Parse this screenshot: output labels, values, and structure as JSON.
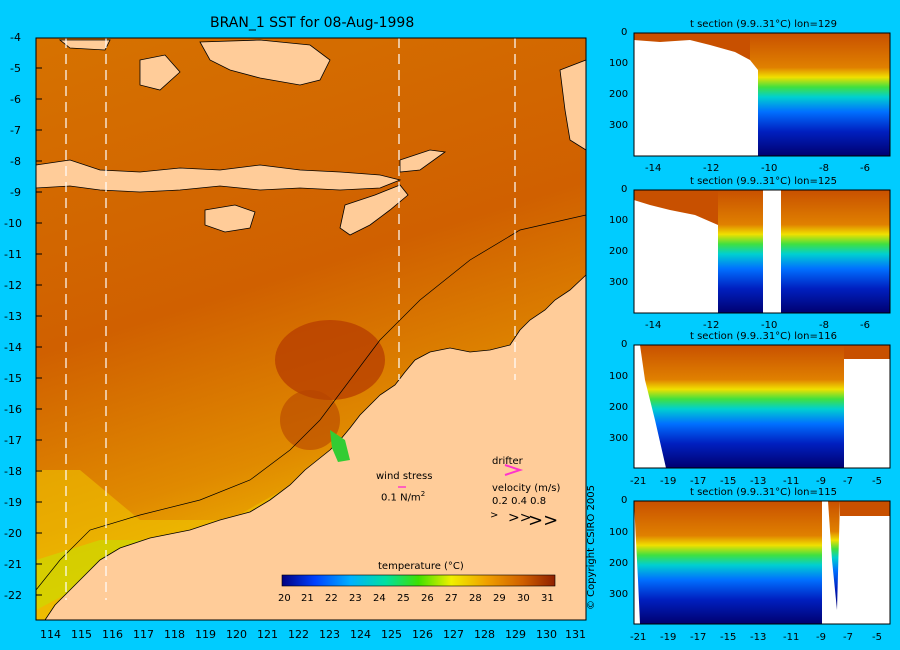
{
  "main_map": {
    "title": "BRAN_1 SST for 08-Aug-1998",
    "lat_ticks": [
      "-4",
      "-5",
      "-6",
      "-7",
      "-8",
      "-9",
      "-10",
      "-11",
      "-12",
      "-13",
      "-14",
      "-15",
      "-16",
      "-17",
      "-18",
      "-19",
      "-20",
      "-21",
      "-22"
    ],
    "lon_ticks": [
      "114",
      "115",
      "116",
      "117",
      "118",
      "119",
      "120",
      "121",
      "122",
      "123",
      "124",
      "125",
      "126",
      "127",
      "128",
      "129",
      "130",
      "131"
    ],
    "annotations": {
      "wind_stress_label": "wind stress",
      "wind_stress_scale": "0.1 N/m",
      "wind_stress_scale_sup": "2",
      "drifter_label": "drifter",
      "velocity_label": "velocity (m/s)",
      "velocity_scale": "0.2 0.4 0.8"
    },
    "colorbar": {
      "title": "temperature (°C)",
      "ticks": [
        "20",
        "21",
        "22",
        "23",
        "24",
        "25",
        "26",
        "27",
        "28",
        "29",
        "30",
        "31"
      ]
    },
    "colors": {
      "background": "#00ccff",
      "land": "#ffcc99",
      "warm": "#d26a00",
      "hot": "#b33300",
      "cool": "#f0b000",
      "drifter": "#ff33cc"
    }
  },
  "copyright": "© Copyright CSIRO 2005",
  "sections": [
    {
      "title": "t section (9.9..31°C) lon=129",
      "y_ticks": [
        "0",
        "100",
        "200",
        "300"
      ],
      "x_ticks": [
        "-14",
        "-12",
        "-10",
        "-8",
        "-6"
      ]
    },
    {
      "title": "t section (9.9..31°C) lon=125",
      "y_ticks": [
        "0",
        "100",
        "200",
        "300"
      ],
      "x_ticks": [
        "-14",
        "-12",
        "-10",
        "-8",
        "-6"
      ]
    },
    {
      "title": "t section (9.9..31°C) lon=116",
      "y_ticks": [
        "0",
        "100",
        "200",
        "300"
      ],
      "x_ticks": [
        "-21",
        "-19",
        "-17",
        "-15",
        "-13",
        "-11",
        "-9",
        "-7",
        "-5"
      ]
    },
    {
      "title": "t section (9.9..31°C) lon=115",
      "y_ticks": [
        "0",
        "100",
        "200",
        "300"
      ],
      "x_ticks": [
        "-21",
        "-19",
        "-17",
        "-15",
        "-13",
        "-11",
        "-9",
        "-7",
        "-5"
      ]
    }
  ]
}
